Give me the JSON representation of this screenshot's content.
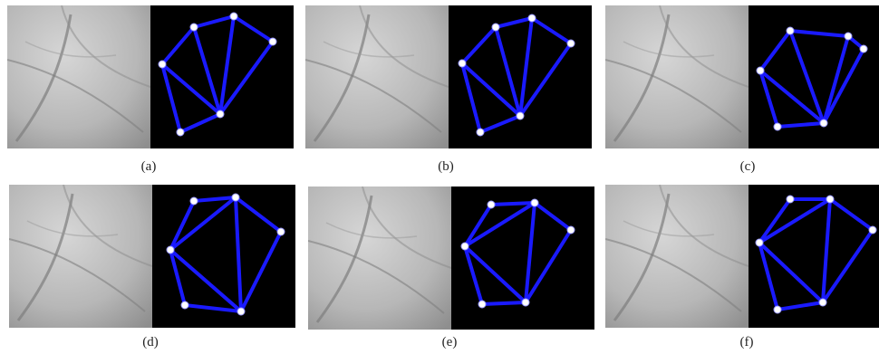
{
  "figure": {
    "captions": [
      "(a)",
      "(b)",
      "(c)",
      "(d)",
      "(e)",
      "(f)"
    ]
  },
  "colors": {
    "edge": "#1a1aff",
    "node": "#ffffff",
    "graph_background": "#000000",
    "palm_light": "#d9d9d9",
    "palm_dark": "#8c8c8c"
  }
}
